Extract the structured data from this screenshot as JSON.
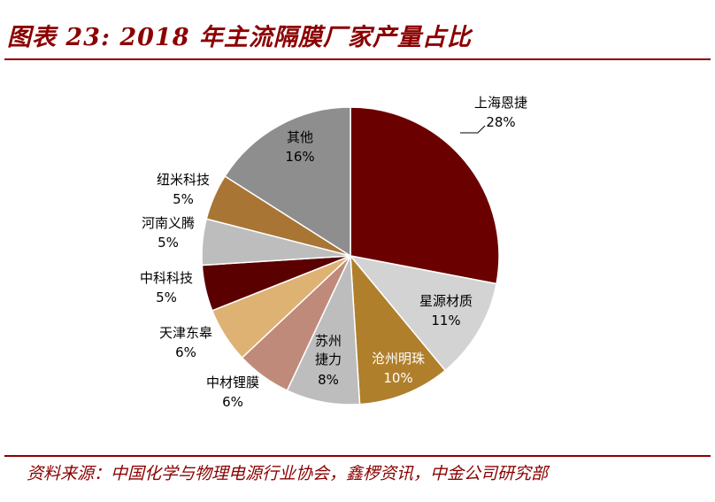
{
  "title": "图表 23: 2018 年主流隔膜厂家产量占比",
  "source": "资料来源：中国化学与物理电源行业协会，鑫椤资讯，中金公司研究部",
  "chart_data": {
    "type": "pie",
    "title": "图表 23: 2018 年主流隔膜厂家产量占比",
    "slices": [
      {
        "label": "上海恩捷",
        "value": 28,
        "display": "28%",
        "color": "#6b0000"
      },
      {
        "label": "星源材质",
        "value": 11,
        "display": "11%",
        "color": "#d3d3d3"
      },
      {
        "label": "沧州明珠",
        "value": 10,
        "display": "10%",
        "color": "#b07f2c"
      },
      {
        "label": "苏州捷力",
        "value": 8,
        "display": "8%",
        "color": "#bdbdbd"
      },
      {
        "label": "中材锂膜",
        "value": 6,
        "display": "6%",
        "color": "#c08a7a"
      },
      {
        "label": "天津东皋",
        "value": 6,
        "display": "6%",
        "color": "#deb273"
      },
      {
        "label": "中科科技",
        "value": 5,
        "display": "5%",
        "color": "#5a0000"
      },
      {
        "label": "河南义腾",
        "value": 5,
        "display": "5%",
        "color": "#bdbdbd"
      },
      {
        "label": "纽米科技",
        "value": 5,
        "display": "5%",
        "color": "#a87535"
      },
      {
        "label": "其他",
        "value": 16,
        "display": "16%",
        "color": "#8e8e8e"
      }
    ]
  }
}
